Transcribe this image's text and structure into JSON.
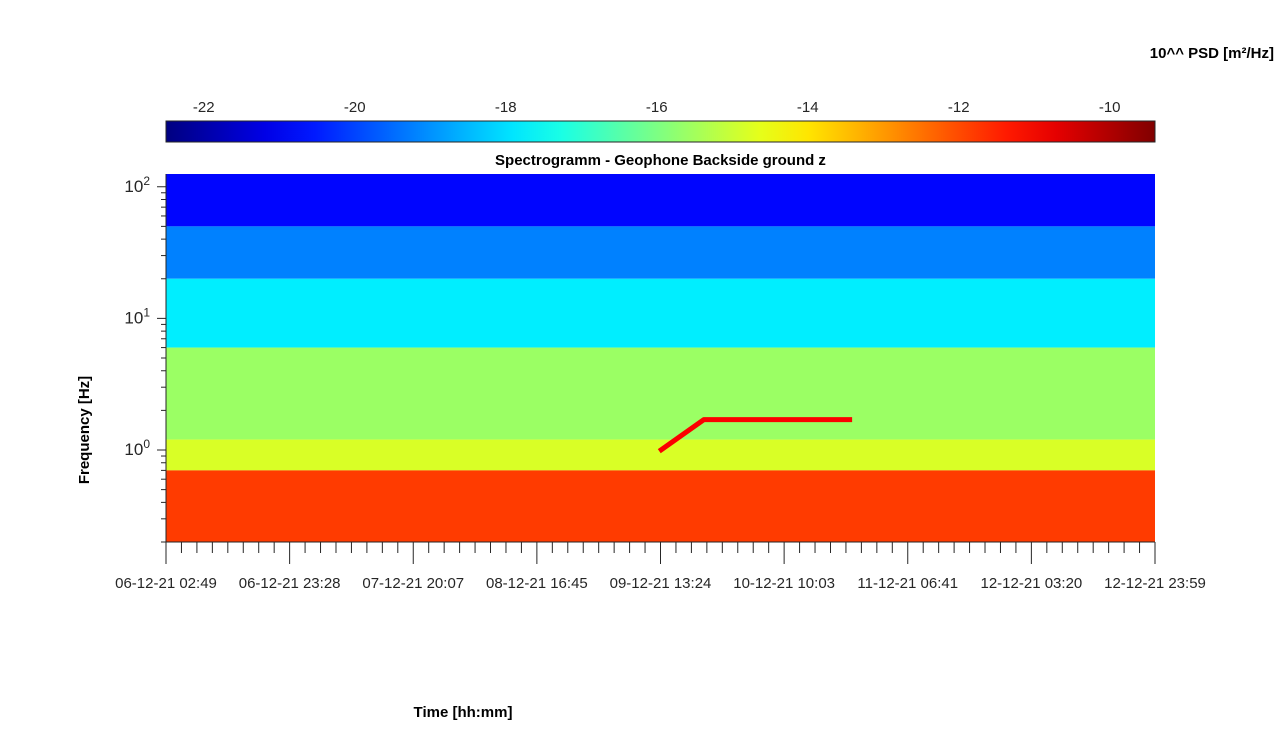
{
  "chart_data": {
    "type": "heatmap",
    "title": "Spectrogramm - Geophone Backside ground z",
    "xlabel": "Time [hh:mm]",
    "ylabel": "Frequency [Hz]",
    "y_scale": "log",
    "ylim": [
      0.2,
      125
    ],
    "x_tick_labels": [
      "06-12-21 02:49",
      "06-12-21 23:28",
      "07-12-21 20:07",
      "08-12-21 16:45",
      "09-12-21 13:24",
      "10-12-21 10:03",
      "11-12-21 06:41",
      "12-12-21 03:20",
      "12-12-21 23:59"
    ],
    "y_ticks": [
      {
        "base": "10",
        "exp": "0",
        "value": 1
      },
      {
        "base": "10",
        "exp": "1",
        "value": 10
      },
      {
        "base": "10",
        "exp": "2",
        "value": 100
      }
    ],
    "colorbar": {
      "label": "10^^ PSD [m²/Hz]",
      "range": [
        -22.5,
        -9.4
      ],
      "ticks": [
        -22,
        -20,
        -18,
        -16,
        -14,
        -12,
        -10
      ],
      "tick_labels": [
        "-22",
        "-20",
        "-18",
        "-16",
        "-14",
        "-12",
        "-10"
      ],
      "colormap": "jet",
      "placement": "top"
    },
    "bands": [
      {
        "f_low": 50,
        "f_high": 125,
        "log_psd": -20.8
      },
      {
        "f_low": 20,
        "f_high": 50,
        "log_psd": -19.2
      },
      {
        "f_low": 6,
        "f_high": 20,
        "log_psd": -17.8
      },
      {
        "f_low": 1.2,
        "f_high": 6,
        "log_psd": -15.6
      },
      {
        "f_low": 0.7,
        "f_high": 1.2,
        "log_psd": -14.8
      },
      {
        "f_low": 0.2,
        "f_high": 0.7,
        "log_psd": -11.8
      }
    ],
    "tonal_line": {
      "points": [
        {
          "t": 3.99,
          "f": 0.98
        },
        {
          "t": 4.35,
          "f": 1.7
        },
        {
          "t": 5.55,
          "f": 1.7
        }
      ],
      "log_psd": -11.0
    }
  }
}
